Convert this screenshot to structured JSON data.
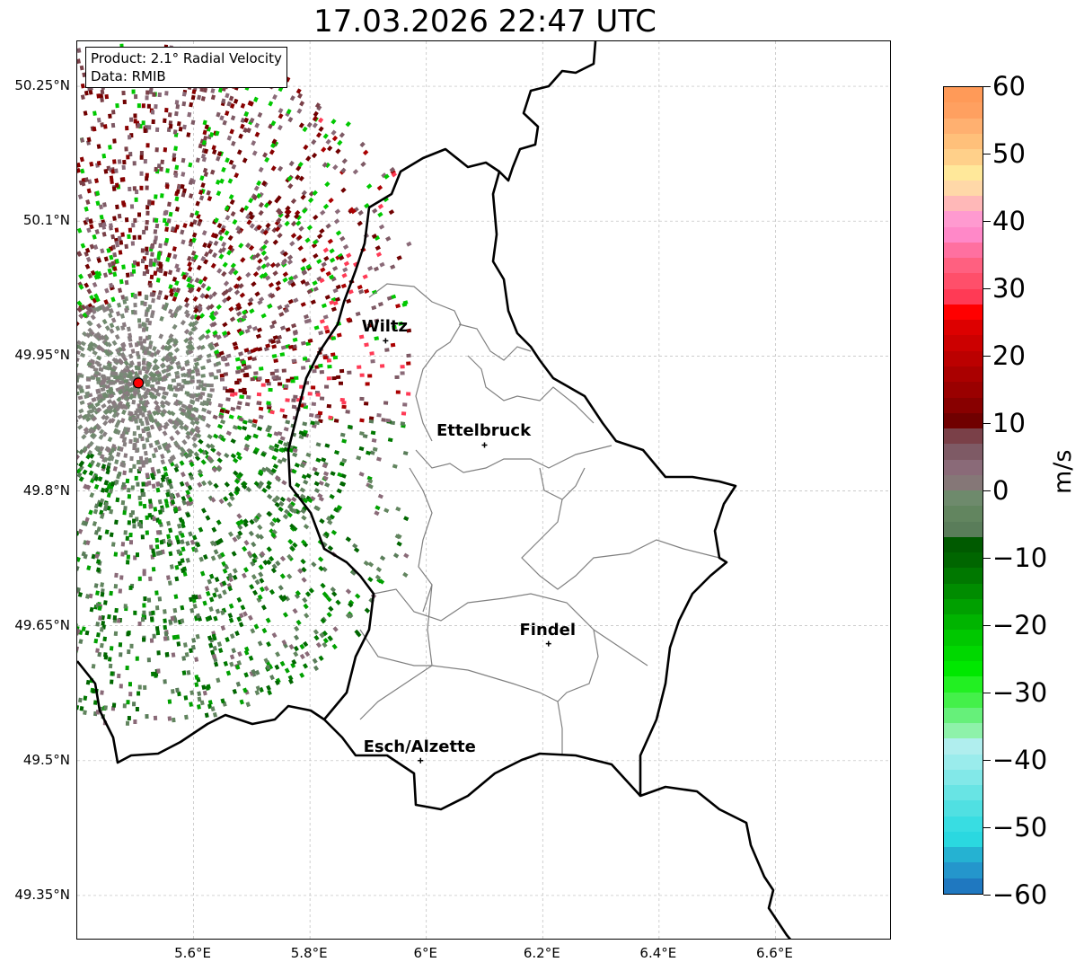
{
  "title": "17.03.2026 22:47 UTC",
  "info": {
    "product": "Product: 2.1° Radial Velocity",
    "data": "Data: RMIB"
  },
  "lat_ticks": [
    "50.25°N",
    "50.1°N",
    "49.95°N",
    "49.8°N",
    "49.65°N",
    "49.5°N",
    "49.35°N"
  ],
  "lat_values": [
    50.25,
    50.1,
    49.95,
    49.8,
    49.65,
    49.5,
    49.35
  ],
  "lon_ticks": [
    "5.6°E",
    "5.8°E",
    "6°E",
    "6.2°E",
    "6.4°E",
    "6.6°E"
  ],
  "lon_values": [
    5.6,
    5.8,
    6.0,
    6.2,
    6.4,
    6.6
  ],
  "extent": {
    "lon": [
      5.4,
      6.8
    ],
    "lat": [
      49.3,
      50.3
    ]
  },
  "radar": {
    "lon": 5.505,
    "lat": 49.92,
    "color": "#ff0000"
  },
  "cities": [
    {
      "name": "Wiltz",
      "lon": 5.93,
      "lat": 49.967
    },
    {
      "name": "Ettelbruck",
      "lon": 6.1,
      "lat": 49.851
    },
    {
      "name": "Findel",
      "lon": 6.21,
      "lat": 49.63
    },
    {
      "name": "Esch/Alzette",
      "lon": 5.99,
      "lat": 49.5
    }
  ],
  "colorbar": {
    "unit": "m/s",
    "min": -60,
    "max": 60,
    "ticks": [
      "−60",
      "−50",
      "−40",
      "−30",
      "−20",
      "−10",
      "0",
      "10",
      "20",
      "30",
      "40",
      "50",
      "60"
    ],
    "tick_values": [
      -60,
      -50,
      -40,
      -30,
      -20,
      -10,
      0,
      10,
      20,
      30,
      40,
      50,
      60
    ],
    "colors": [
      "#1f78c0",
      "#2496cc",
      "#25b2d2",
      "#2ad8e0",
      "#38dde2",
      "#50e0e2",
      "#68e4e4",
      "#82e8e8",
      "#9aecec",
      "#b0eeee",
      "#8ef2aa",
      "#66f07a",
      "#44f04a",
      "#22f022",
      "#00e800",
      "#00d800",
      "#00c800",
      "#00b400",
      "#00a000",
      "#008c00",
      "#007800",
      "#006600",
      "#005a00",
      "#5a7d5a",
      "#62855f",
      "#6e8a6c",
      "#857777",
      "#8a6a78",
      "#7e5a65",
      "#7a4048",
      "#700000",
      "#880000",
      "#9a0000",
      "#aa0000",
      "#bb0000",
      "#cc0000",
      "#dd0000",
      "#ff0000",
      "#ff3a55",
      "#ff4f6a",
      "#ff6080",
      "#ff70a0",
      "#ff88c8",
      "#ff9ad0",
      "#ffb8b8",
      "#ffd8a8",
      "#ffe89a",
      "#ffd08a",
      "#ffc07a",
      "#ffb070",
      "#ffa060",
      "#ff9a58"
    ]
  }
}
